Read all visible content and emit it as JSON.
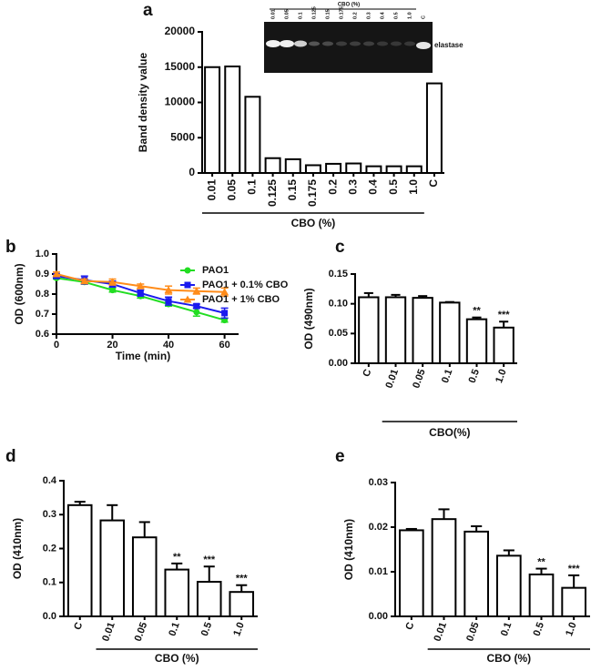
{
  "chart_data": [
    {
      "type": "bar",
      "panel": "a",
      "ylabel": "Band density value",
      "xlabel": "CBO (%)",
      "categories": [
        "0.01",
        "0.05",
        "0.1",
        "0.125",
        "0.15",
        "0.175",
        "0.2",
        "0.3",
        "0.4",
        "0.5",
        "1.0",
        "C"
      ],
      "values": [
        15000,
        15100,
        10800,
        2100,
        1950,
        1100,
        1300,
        1350,
        950,
        950,
        950,
        12700
      ],
      "ylim": [
        0,
        20000
      ],
      "yticks": [
        0,
        5000,
        10000,
        15000,
        20000
      ],
      "color": "#ffffff",
      "inset": {
        "title": "CBO (%)",
        "lanes": [
          "0.01",
          "0.05",
          "0.1",
          "0.125",
          "0.15",
          "0.175",
          "0.2",
          "0.3",
          "0.4",
          "0.5",
          "1.0",
          "C"
        ],
        "label": "elastase"
      }
    },
    {
      "type": "line",
      "panel": "b",
      "ylabel": "OD (600nm)",
      "xlabel": "Time (min)",
      "x": [
        0,
        10,
        20,
        30,
        40,
        50,
        60
      ],
      "series": [
        {
          "name": "PAO1",
          "color": "#22dd22",
          "marker": "circle",
          "values": [
            0.88,
            0.86,
            0.82,
            0.79,
            0.75,
            0.71,
            0.67
          ],
          "errors": [
            0.005,
            0.01,
            0.01,
            0.01,
            0.01,
            0.02,
            0.01
          ]
        },
        {
          "name": "PAO1 + 0.1% CBO",
          "color": "#1a1aee",
          "marker": "square",
          "values": [
            0.89,
            0.87,
            0.85,
            0.805,
            0.765,
            0.74,
            0.705
          ],
          "errors": [
            0.01,
            0.02,
            0.015,
            0.015,
            0.02,
            0.01,
            0.025
          ]
        },
        {
          "name": "PAO1 + 1% CBO",
          "color": "#ff8c1a",
          "marker": "triangle",
          "values": [
            0.9,
            0.865,
            0.86,
            0.84,
            0.82,
            0.815,
            0.81
          ],
          "errors": [
            0.01,
            0.01,
            0.015,
            0.01,
            0.02,
            0.015,
            0.02
          ]
        }
      ],
      "xlim": [
        0,
        65
      ],
      "xticks": [
        0,
        20,
        40,
        60
      ],
      "ylim": [
        0.6,
        1.0
      ],
      "yticks": [
        0.6,
        0.7,
        0.8,
        0.9,
        {
          "value": 1.0,
          "label": "1.0"
        }
      ],
      "legend": "upper right"
    },
    {
      "type": "bar",
      "panel": "c",
      "ylabel": "OD (490nm)",
      "xlabel": "CBO(%)",
      "categories": [
        "C",
        "0.01",
        "0.05",
        "0.1",
        "0.5",
        "1.0"
      ],
      "values": [
        0.111,
        0.111,
        0.11,
        0.102,
        0.074,
        0.06
      ],
      "errors": [
        0.007,
        0.004,
        0.003,
        0.001,
        0.003,
        0.01
      ],
      "annotations": [
        null,
        null,
        null,
        null,
        "**",
        "***"
      ],
      "ylim": [
        0,
        0.15
      ],
      "yticks": [
        {
          "value": 0,
          "label": "0.00"
        },
        0.05,
        {
          "value": 0.1,
          "label": "0.10"
        },
        0.15
      ],
      "color": "#ffffff"
    },
    {
      "type": "bar",
      "panel": "d",
      "ylabel": "OD (410nm)",
      "xlabel": "CBO (%)",
      "categories": [
        "C",
        "0.01",
        "0.05",
        "0.1",
        "0.5",
        "1.0"
      ],
      "values": [
        0.328,
        0.283,
        0.233,
        0.138,
        0.102,
        0.072
      ],
      "errors": [
        0.01,
        0.045,
        0.045,
        0.018,
        0.045,
        0.02
      ],
      "annotations": [
        null,
        null,
        null,
        "**",
        "***",
        "***"
      ],
      "ylim": [
        0,
        0.4
      ],
      "yticks": [
        {
          "value": 0,
          "label": "0.0"
        },
        0.1,
        0.2,
        0.3,
        0.4
      ],
      "color": "#ffffff"
    },
    {
      "type": "bar",
      "panel": "e",
      "ylabel": "OD (410nm)",
      "xlabel": "CBO (%)",
      "categories": [
        "C",
        "0.01",
        "0.05",
        "0.1",
        "0.5",
        "1.0"
      ],
      "values": [
        0.0193,
        0.0218,
        0.019,
        0.0136,
        0.0094,
        0.0064
      ],
      "errors": [
        0.0003,
        0.0022,
        0.0012,
        0.0012,
        0.0013,
        0.0028
      ],
      "annotations": [
        null,
        null,
        null,
        null,
        "**",
        "***"
      ],
      "ylim": [
        0,
        0.03
      ],
      "yticks": [
        {
          "value": 0,
          "label": "0.00"
        },
        0.01,
        0.02,
        0.03
      ],
      "color": "#ffffff"
    }
  ]
}
